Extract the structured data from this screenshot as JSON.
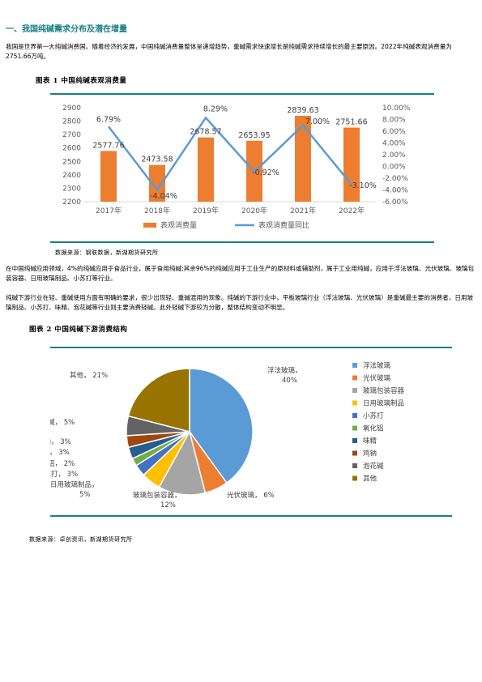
{
  "section": {
    "title": "一、我国纯碱需求分布及潜在增量"
  },
  "paragraphs": {
    "p1": "我国是世界第一大纯碱消费国。随着经济的发展，中国纯碱消费量整体呈递增趋势，重碱需求快速增长是纯碱需求持续增长的最主要原因。2022年纯碱表观消费量为2751.66万吨。",
    "p2": "在中国纯碱应用领域，4%的纯碱应用于食品行业，属于食用纯碱;其余96%的纯碱应用于工业生产的原材料或辅助剂，属于工业用纯碱，应用于浮法玻璃、光伏玻璃、玻璃包装容器、日用玻璃制品、小苏打等行业。",
    "p3": "纯碱下游行业在轻、重碱使用方面有明确的要求，很少出现轻、重碱混用的现象。纯碱的下游行业中，平板玻璃行业（浮法玻璃、光伏玻璃）是重碱最主要的消费者，日用玻璃制品、小苏打、味精、泡花碱等行业则主要消费轻碱。此外轻碱下游较为分散，整体结构变动不明显。"
  },
  "figure1": {
    "title": "图表 1  中国纯碱表观消费量",
    "source": "数据来源：钢联数据，新湖期货研究所"
  },
  "figure2": {
    "title": "图表 2  中国纯碱下游消费结构",
    "source": "数据来源：卓创资讯，新湖期货研究所"
  },
  "colors": {
    "teal": "#1a7f86",
    "orange": "#ed7d31",
    "blue": "#5b9bd5"
  },
  "chart_data": [
    {
      "type": "bar",
      "categories": [
        "2017年",
        "2018年",
        "2019年",
        "2020年",
        "2021年",
        "2022年"
      ],
      "series": [
        {
          "name": "表观消费量",
          "type": "bar",
          "axis": "left",
          "values": [
            2577.76,
            2473.58,
            2678.57,
            2653.95,
            2839.63,
            2751.66
          ],
          "labels": [
            "2577.76",
            "2473.58",
            "2678.57",
            "2653.95",
            "2839.63",
            "2751.66"
          ]
        },
        {
          "name": "表观消费量同比",
          "type": "line",
          "axis": "right",
          "values": [
            6.79,
            -4.04,
            8.29,
            -0.92,
            7.0,
            -3.1
          ],
          "labels": [
            "6.79%",
            "-4.04%",
            "8.29%",
            "-0.92%",
            "7.00%",
            "-3.10%"
          ]
        }
      ],
      "ylim": [
        2200,
        2900
      ],
      "y_ticks": [
        "2200",
        "2300",
        "2400",
        "2500",
        "2600",
        "2700",
        "2800",
        "2900"
      ],
      "y2lim": [
        -6,
        10
      ],
      "y2_ticks": [
        "10.00%",
        "8.00%",
        "6.00%",
        "4.00%",
        "2.00%",
        "0.00%",
        "-2.00%",
        "-4.00%",
        "-6.00%"
      ],
      "legend_position": "bottom",
      "grid": false
    },
    {
      "type": "pie",
      "slices": [
        {
          "label": "浮法玻璃",
          "value": 40,
          "pct": "40%",
          "color": "#5b9bd5"
        },
        {
          "label": "光伏玻璃",
          "value": 6,
          "pct": "6%",
          "color": "#ed7d31"
        },
        {
          "label": "玻璃包装容器",
          "value": 12,
          "pct": "12%",
          "color": "#a5a5a5"
        },
        {
          "label": "日用玻璃制品",
          "value": 5,
          "pct": "5%",
          "color": "#ffc000"
        },
        {
          "label": "小苏打",
          "value": 3,
          "pct": "3%",
          "color": "#4472c4"
        },
        {
          "label": "氧化铝",
          "value": 2,
          "pct": "2%",
          "color": "#70ad47"
        },
        {
          "label": "味精",
          "value": 3,
          "pct": "3%",
          "color": "#255e91"
        },
        {
          "label": "鸡钠",
          "value": 3,
          "pct": "3%",
          "color": "#9e480e"
        },
        {
          "label": "泡花碱",
          "value": 5,
          "pct": "5%",
          "color": "#636363"
        },
        {
          "label": "其他",
          "value": 21,
          "pct": "21%",
          "color": "#997300"
        }
      ],
      "legend_position": "right"
    }
  ]
}
